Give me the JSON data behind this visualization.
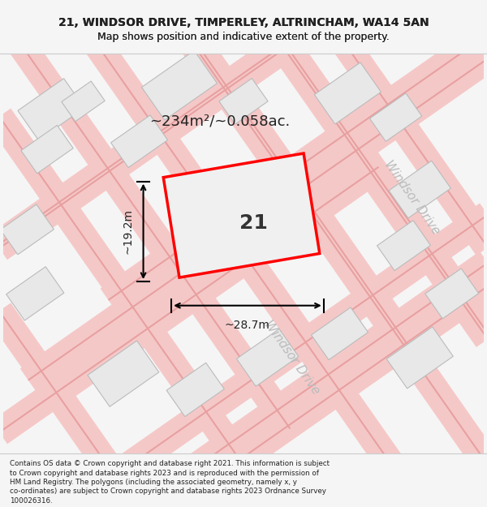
{
  "title_line1": "21, WINDSOR DRIVE, TIMPERLEY, ALTRINCHAM, WA14 5AN",
  "title_line2": "Map shows position and indicative extent of the property.",
  "area_text": "~234m²/~0.058ac.",
  "label_21": "21",
  "dim_width": "~28.7m",
  "dim_height": "~19.2m",
  "footer_text": "Contains OS data © Crown copyright and database right 2021. This information is subject to Crown copyright and database rights 2023 and is reproduced with the permission of HM Land Registry. The polygons (including the associated geometry, namely x, y co-ordinates) are subject to Crown copyright and database rights 2023 Ordnance Survey 100026316.",
  "bg_color": "#f5f5f5",
  "map_bg": "#ffffff",
  "road_color": "#f0c8c8",
  "road_line_color": "#e08080",
  "building_fill": "#e8e8e8",
  "building_edge": "#cccccc",
  "plot_fill": "#f0f0f0",
  "plot_edge": "#ff0000",
  "windsor_drive_label": "Windsor Drive",
  "road_label_color": "#aaaaaa"
}
